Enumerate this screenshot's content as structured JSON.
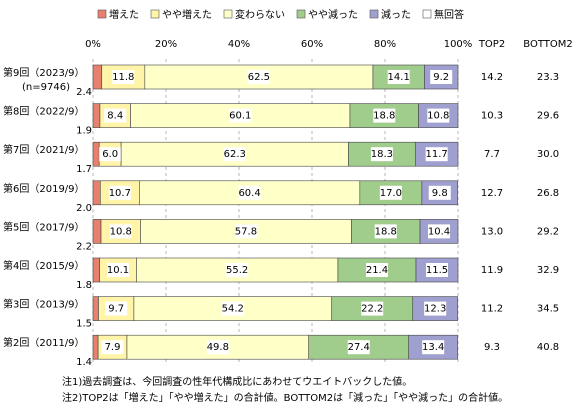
{
  "chart_data": {
    "type": "stacked-bar-horizontal",
    "categories": [
      "第9回（2023/9）",
      "第8回（2022/9）",
      "第7回（2021/9）",
      "第6回（2019/9）",
      "第5回（2017/9）",
      "第4回（2015/9）",
      "第3回（2013/9）",
      "第2回（2011/9）"
    ],
    "sample_note": "(n=9746)",
    "xlim": [
      0,
      100
    ],
    "xticks": [
      {
        "value": 0,
        "label": "0%"
      },
      {
        "value": 20,
        "label": "20%"
      },
      {
        "value": 40,
        "label": "40%"
      },
      {
        "value": 60,
        "label": "60%"
      },
      {
        "value": 80,
        "label": "80%"
      },
      {
        "value": 100,
        "label": "100%"
      }
    ],
    "grid": true,
    "legend": "top",
    "series": [
      {
        "name": "増えた",
        "color": "#e8806e",
        "values": [
          2.4,
          1.9,
          1.7,
          2.0,
          2.2,
          1.8,
          1.5,
          1.4
        ],
        "value_labels": [
          "2.4",
          "1.9",
          "1.7",
          "2.0",
          "2.2",
          "1.8",
          "1.5",
          "1.4"
        ]
      },
      {
        "name": "やや増えた",
        "color": "#fff4a8",
        "values": [
          11.8,
          8.4,
          6.0,
          10.7,
          10.8,
          10.1,
          9.7,
          7.9
        ],
        "value_labels": [
          "11.8",
          "8.4",
          "6.0",
          "10.7",
          "10.8",
          "10.1",
          "9.7",
          "7.9"
        ]
      },
      {
        "name": "変わらない",
        "color": "#ffffc8",
        "values": [
          62.5,
          60.1,
          62.3,
          60.4,
          57.8,
          55.2,
          54.2,
          49.8
        ],
        "value_labels": [
          "62.5",
          "60.1",
          "62.3",
          "60.4",
          "57.8",
          "55.2",
          "54.2",
          "49.8"
        ]
      },
      {
        "name": "やや減った",
        "color": "#a0cc8c",
        "values": [
          14.1,
          18.8,
          18.3,
          17.0,
          18.8,
          21.4,
          22.2,
          27.4
        ],
        "value_labels": [
          "14.1",
          "18.8",
          "18.3",
          "17.0",
          "18.8",
          "21.4",
          "22.2",
          "27.4"
        ]
      },
      {
        "name": "減った",
        "color": "#a0a0d0",
        "values": [
          9.2,
          10.8,
          11.7,
          9.8,
          10.4,
          11.5,
          12.3,
          13.4
        ],
        "value_labels": [
          "9.2",
          "10.8",
          "11.7",
          "9.8",
          "10.4",
          "11.5",
          "12.3",
          "13.4"
        ]
      },
      {
        "name": "無回答",
        "color": "#ffffff",
        "values": [
          0,
          0,
          0,
          0,
          0,
          0,
          0,
          0
        ]
      }
    ],
    "summary_columns": [
      {
        "header": "TOP2",
        "values": [
          14.2,
          10.3,
          7.7,
          12.7,
          13.0,
          11.9,
          11.2,
          9.3
        ],
        "value_labels": [
          "14.2",
          "10.3",
          "7.7",
          "12.7",
          "13.0",
          "11.9",
          "11.2",
          "9.3"
        ]
      },
      {
        "header": "BOTTOM2",
        "values": [
          23.3,
          29.6,
          30.0,
          26.8,
          29.2,
          32.9,
          34.5,
          40.8
        ],
        "value_labels": [
          "23.3",
          "29.6",
          "30.0",
          "26.8",
          "29.2",
          "32.9",
          "34.5",
          "40.8"
        ]
      }
    ],
    "notes": [
      "注1)過去調査は、今回調査の性年代構成比にあわせてウエイトバックした値。",
      "注2)TOP2は「増えた」「やや増えた」の合計値。BOTTOM2は「減った」「やや減った」の合計値。"
    ]
  }
}
